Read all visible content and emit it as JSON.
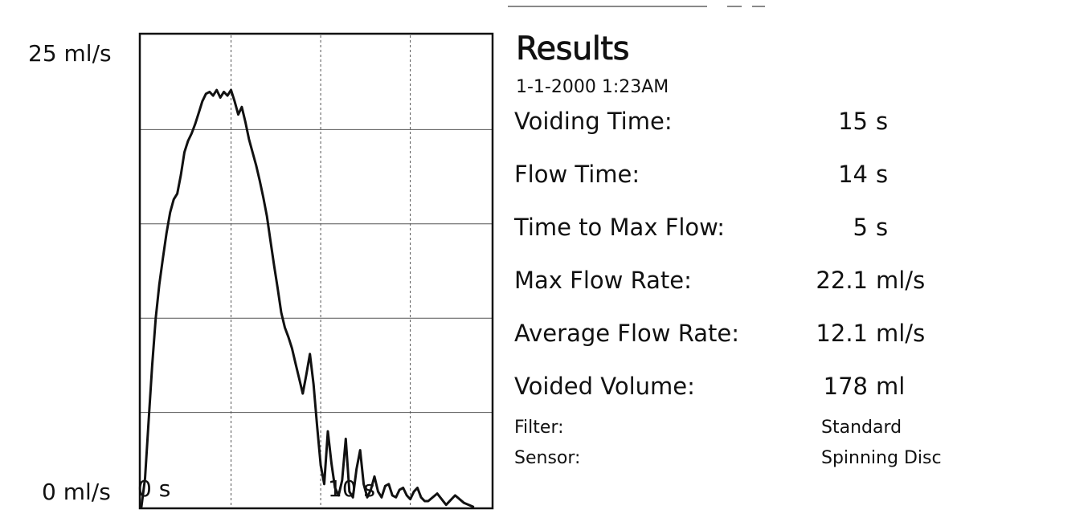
{
  "chart_data": {
    "type": "line",
    "title": "",
    "xlabel": "",
    "ylabel": "",
    "ylim": [
      0,
      25
    ],
    "xlim": [
      0,
      19.5
    ],
    "grid": true,
    "y_tick_labels": [
      "25 ml/s",
      "0 ml/s"
    ],
    "x_tick_labels": [
      "0 s",
      "10 s"
    ],
    "series": [
      {
        "values_x": [
          0.0,
          0.2,
          0.4,
          0.6,
          0.8,
          1.0,
          1.2,
          1.4,
          1.6,
          1.8,
          2.0,
          2.2,
          2.4,
          2.6,
          2.8,
          3.0,
          3.2,
          3.4,
          3.6,
          3.8,
          4.0,
          4.2,
          4.4,
          4.6,
          4.8,
          5.0,
          5.2,
          5.4,
          5.6,
          5.8,
          6.0,
          6.2,
          6.4,
          6.6,
          6.8,
          7.0,
          7.2,
          7.4,
          7.6,
          7.8,
          8.0,
          8.2,
          8.4,
          8.6,
          8.8,
          9.0,
          9.2,
          9.4,
          9.6,
          9.8,
          10.0,
          10.2,
          10.4,
          10.6,
          10.8,
          11.0,
          11.2,
          11.4,
          11.6,
          11.8,
          12.0,
          12.2,
          12.4,
          12.6,
          12.8,
          13.0,
          13.2,
          13.4,
          13.6,
          13.8,
          14.0,
          14.2,
          14.4,
          14.6,
          14.8,
          15.0,
          15.2,
          15.4,
          15.6,
          15.8,
          16.0,
          16.5,
          17.0,
          17.5,
          18.0,
          18.5
        ],
        "values_y": [
          0.0,
          1.5,
          4.5,
          7.5,
          10.0,
          11.8,
          13.2,
          14.5,
          15.6,
          16.3,
          16.6,
          17.6,
          18.8,
          19.4,
          19.8,
          20.3,
          20.9,
          21.5,
          21.9,
          22.0,
          21.8,
          22.1,
          21.7,
          22.0,
          21.8,
          22.1,
          21.5,
          20.8,
          21.2,
          20.4,
          19.5,
          18.8,
          18.1,
          17.3,
          16.4,
          15.4,
          14.1,
          12.8,
          11.6,
          10.3,
          9.5,
          9.0,
          8.4,
          7.6,
          6.8,
          6.0,
          7.0,
          8.1,
          6.5,
          4.3,
          2.2,
          1.2,
          4.0,
          2.3,
          1.0,
          0.6,
          1.4,
          3.6,
          0.8,
          0.5,
          2.0,
          3.0,
          1.2,
          0.5,
          0.9,
          1.6,
          0.8,
          0.5,
          1.1,
          1.2,
          0.6,
          0.5,
          0.9,
          1.0,
          0.6,
          0.4,
          0.8,
          1.0,
          0.5,
          0.3,
          0.3,
          0.7,
          0.1,
          0.6,
          0.2,
          0.0
        ]
      }
    ]
  },
  "results": {
    "title": "Results",
    "date": "1-1-2000  1:23AM",
    "metrics": [
      {
        "label": "Voiding Time:",
        "value": "15",
        "unit": "s"
      },
      {
        "label": "Flow Time:",
        "value": "14",
        "unit": "s"
      },
      {
        "label": "Time to Max Flow:",
        "value": "5",
        "unit": "s"
      },
      {
        "label": "Max Flow Rate:",
        "value": "22.1",
        "unit": "ml/s"
      },
      {
        "label": "Average Flow Rate:",
        "value": "12.1",
        "unit": "ml/s"
      },
      {
        "label": "Voided Volume:",
        "value": "178",
        "unit": "ml"
      }
    ],
    "info": [
      {
        "label": "Filter:",
        "value": "Standard"
      },
      {
        "label": "Sensor:",
        "value": "Spinning Disc"
      }
    ]
  }
}
